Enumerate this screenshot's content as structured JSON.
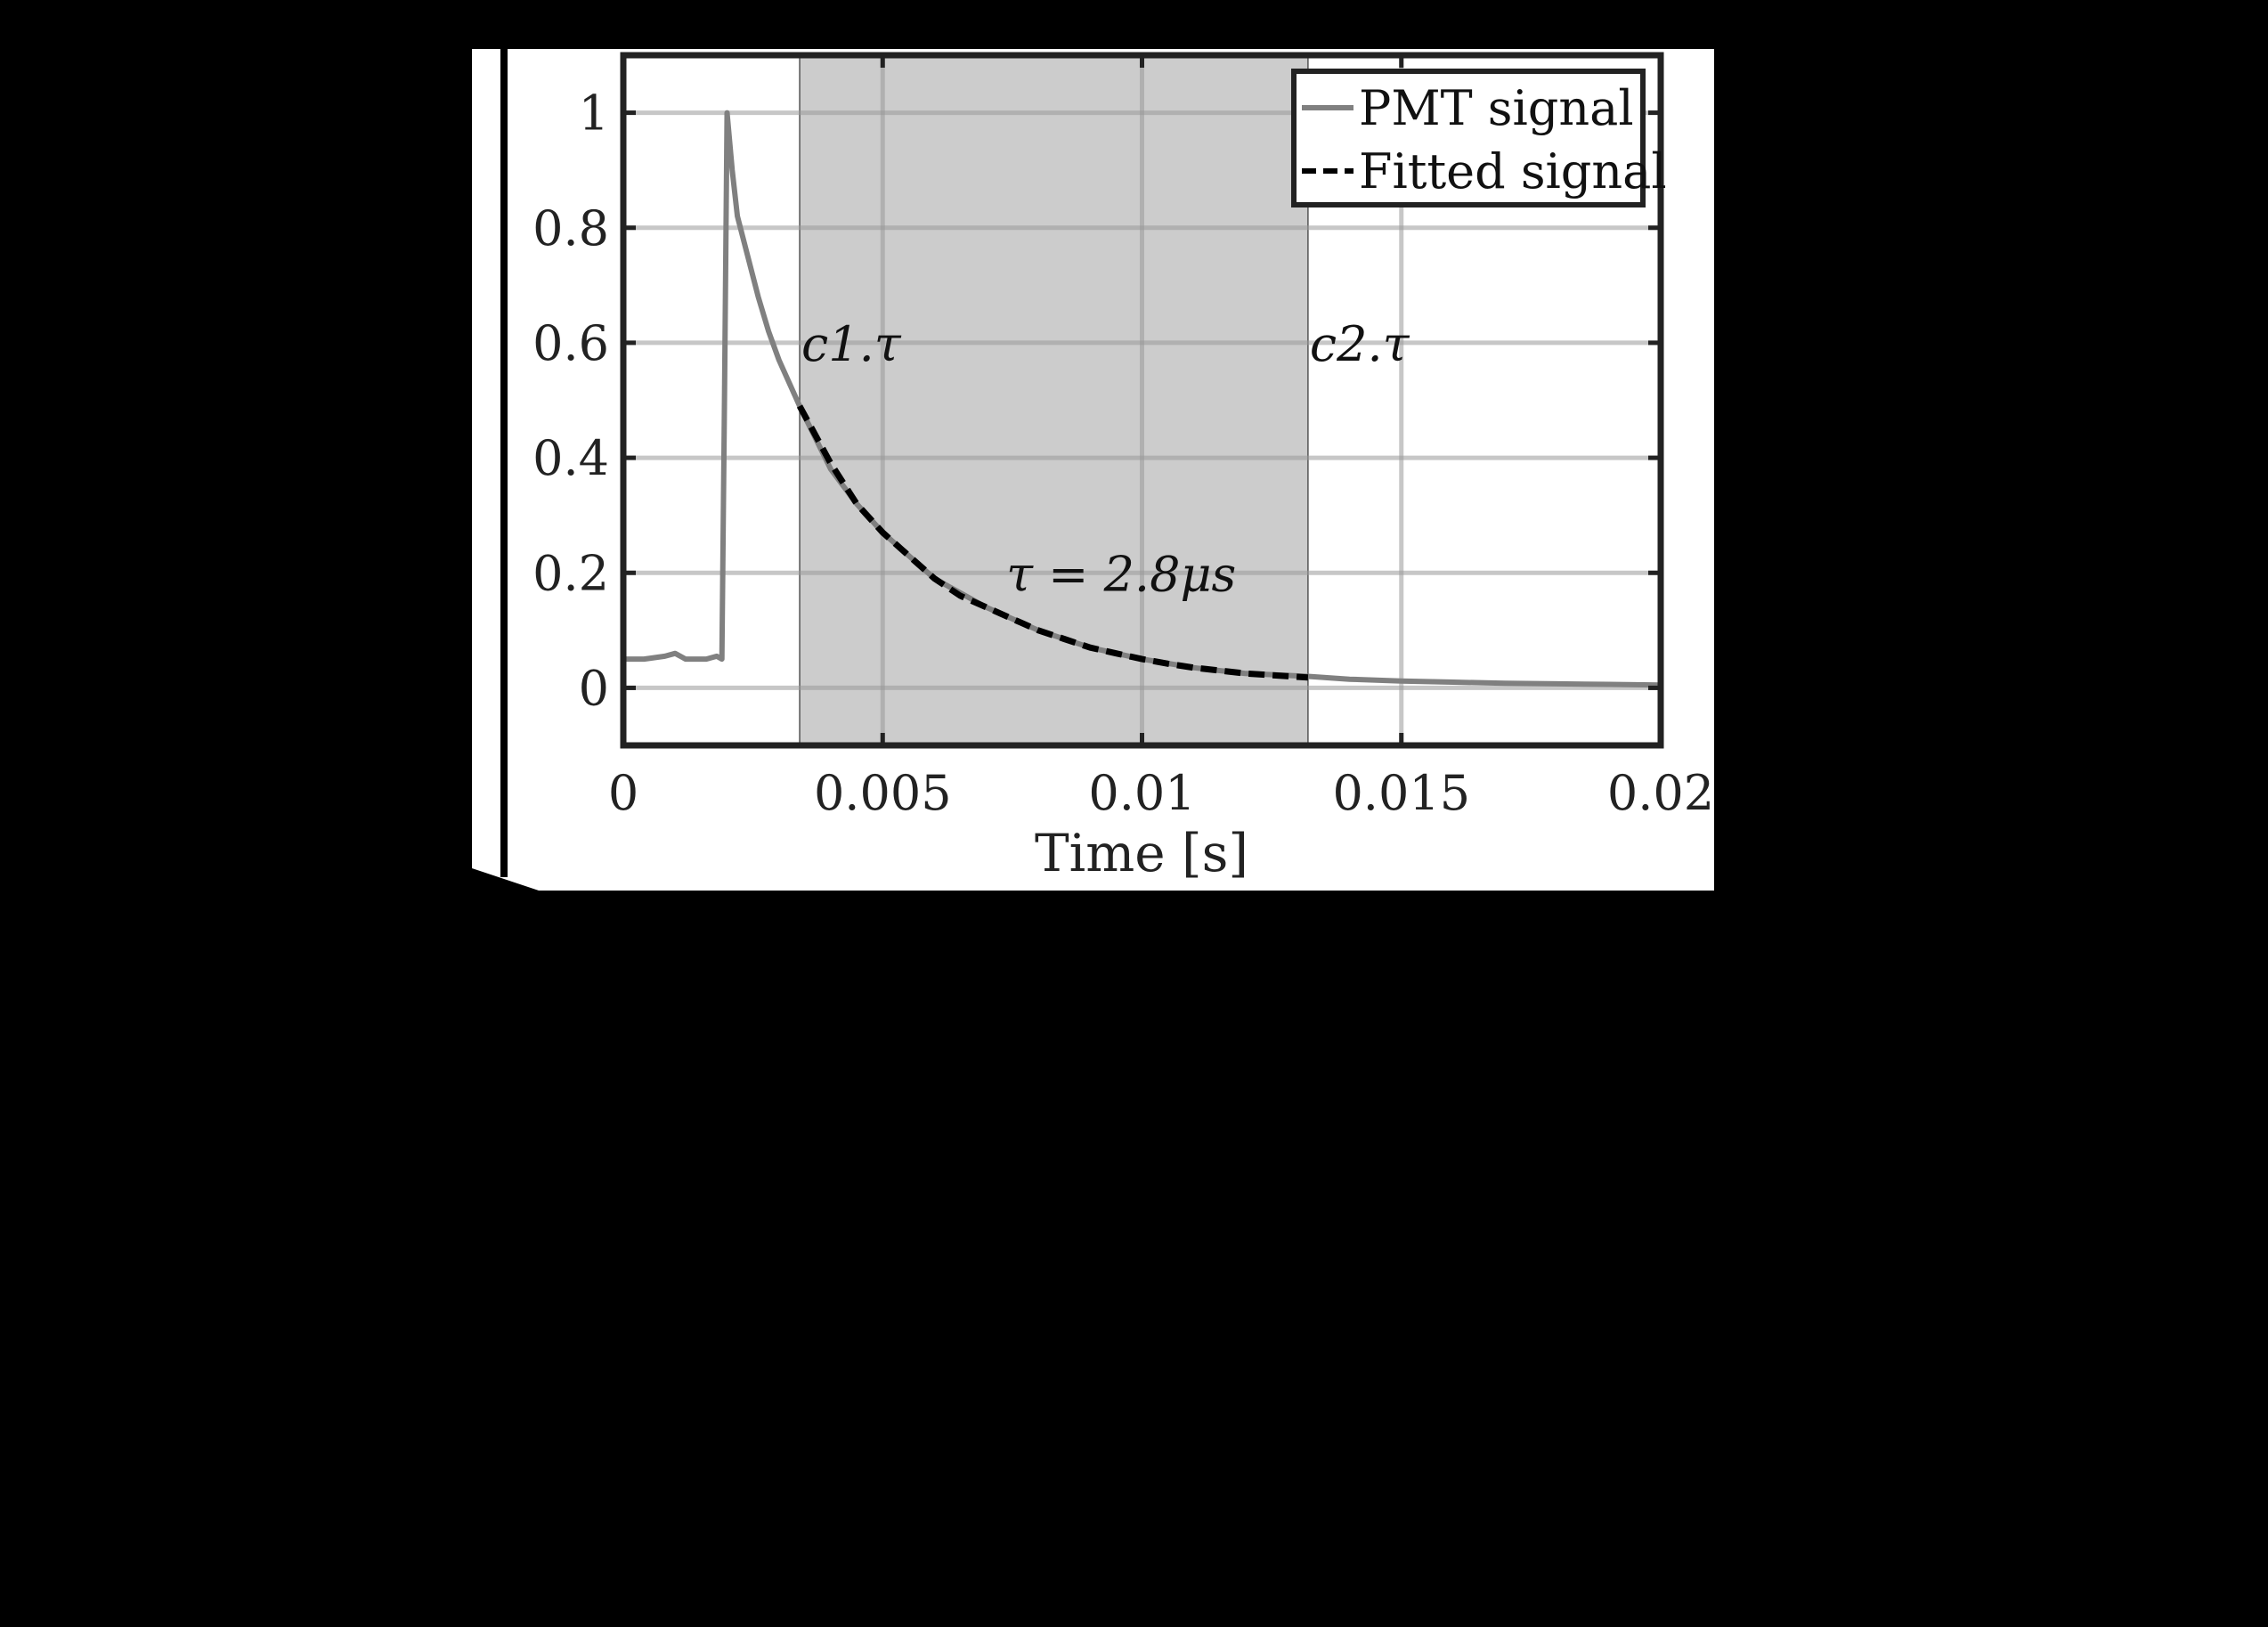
{
  "figure": {
    "background": "#000000",
    "panel_background": "#ffffff"
  },
  "chart_data": {
    "type": "line",
    "title": "",
    "xlabel": "Time [s]",
    "ylabel": "",
    "xlim": [
      0,
      0.02
    ],
    "ylim": [
      -0.1,
      1.1
    ],
    "x_ticks": [
      0,
      0.005,
      0.01,
      0.015,
      0.02
    ],
    "x_tick_labels": [
      "0",
      "0.005",
      "0.01",
      "0.015",
      "0.02"
    ],
    "y_ticks": [
      0,
      0.2,
      0.4,
      0.6,
      0.8,
      1
    ],
    "y_tick_labels": [
      "0",
      "0.2",
      "0.4",
      "0.6",
      "0.8",
      "1"
    ],
    "grid": true,
    "legend_position": "top-right",
    "shaded_region": {
      "x_start": 0.0034,
      "x_end": 0.0132,
      "color": "#cccccc"
    },
    "annotations": [
      {
        "text": "c1.τ",
        "x": 0.0034,
        "y": 0.6
      },
      {
        "text": "c2.τ",
        "x": 0.0132,
        "y": 0.6
      },
      {
        "text": "τ = 2.8μs",
        "x": 0.0096,
        "y": 0.2
      }
    ],
    "series": [
      {
        "name": "PMT signal",
        "style": "solid",
        "color": "#808080",
        "x": [
          0,
          0.0004,
          0.0008,
          0.001,
          0.0012,
          0.0016,
          0.0018,
          0.0019,
          0.00195,
          0.002,
          0.0021,
          0.0022,
          0.0024,
          0.0026,
          0.0028,
          0.003,
          0.0032,
          0.0034,
          0.004,
          0.0045,
          0.005,
          0.0055,
          0.006,
          0.007,
          0.008,
          0.009,
          0.01,
          0.011,
          0.012,
          0.0132,
          0.014,
          0.015,
          0.016,
          0.017,
          0.018,
          0.019,
          0.02
        ],
        "y": [
          0.05,
          0.05,
          0.055,
          0.06,
          0.05,
          0.05,
          0.055,
          0.05,
          0.5,
          1.0,
          0.9,
          0.82,
          0.75,
          0.68,
          0.62,
          0.57,
          0.53,
          0.49,
          0.38,
          0.32,
          0.27,
          0.23,
          0.19,
          0.14,
          0.1,
          0.07,
          0.05,
          0.035,
          0.025,
          0.02,
          0.015,
          0.012,
          0.01,
          0.008,
          0.007,
          0.006,
          0.005
        ]
      },
      {
        "name": "Fitted signal",
        "style": "dashed",
        "color": "#000000",
        "x": [
          0.0034,
          0.004,
          0.0045,
          0.005,
          0.0055,
          0.006,
          0.0065,
          0.007,
          0.0075,
          0.008,
          0.0085,
          0.009,
          0.0095,
          0.01,
          0.0105,
          0.011,
          0.0115,
          0.012,
          0.0125,
          0.0132
        ],
        "y": [
          0.49,
          0.39,
          0.32,
          0.27,
          0.23,
          0.19,
          0.16,
          0.14,
          0.12,
          0.1,
          0.085,
          0.07,
          0.06,
          0.05,
          0.042,
          0.035,
          0.03,
          0.025,
          0.022,
          0.018
        ]
      }
    ]
  }
}
